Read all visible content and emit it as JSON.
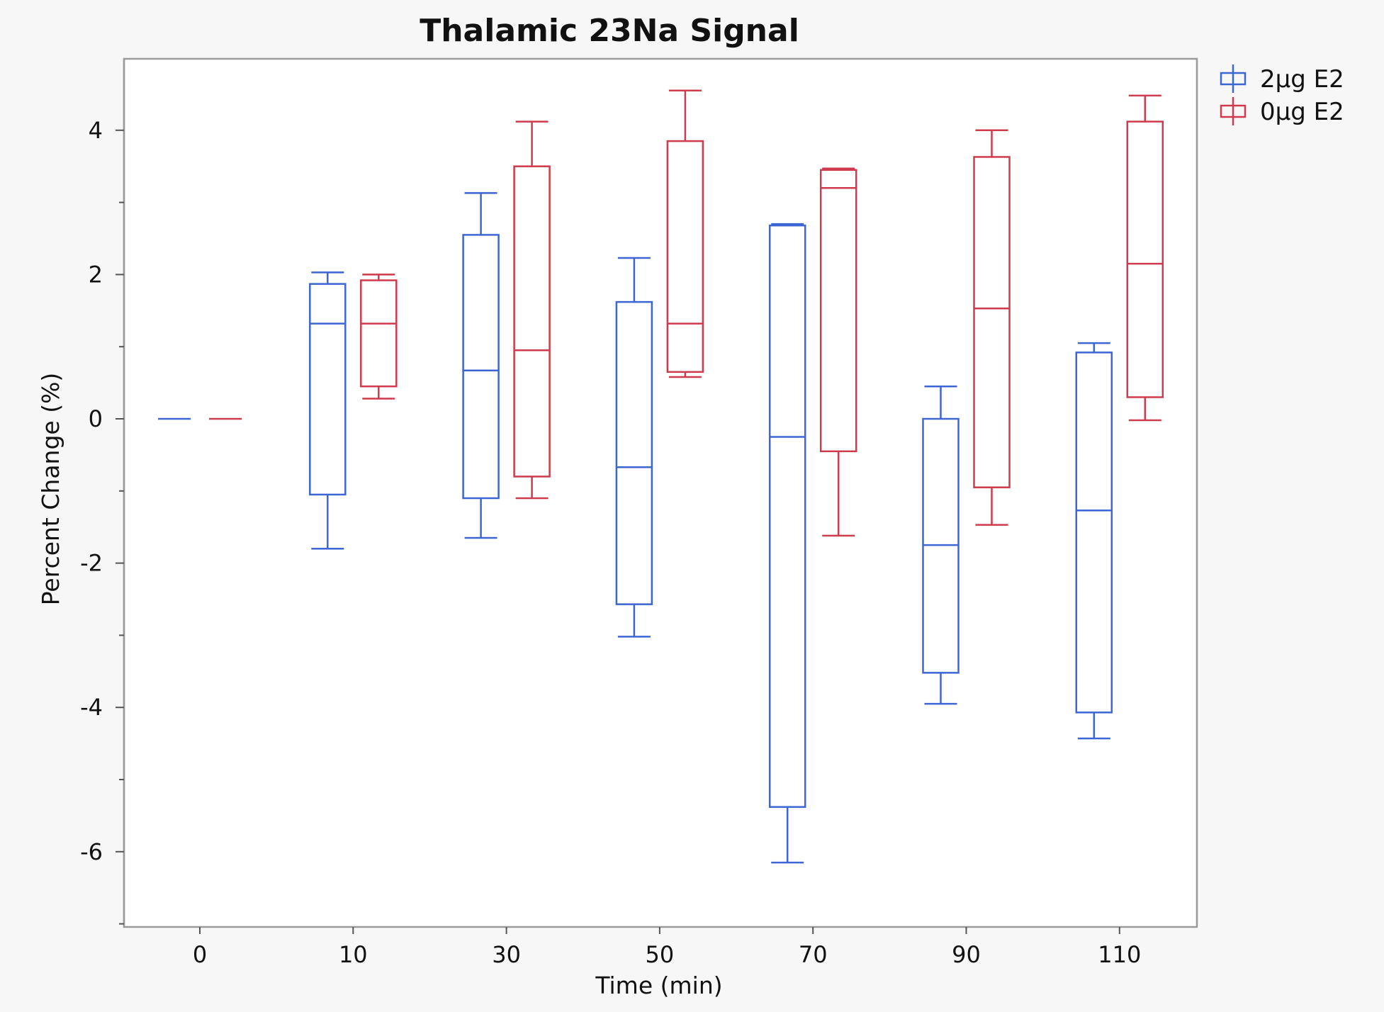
{
  "chart_data": {
    "type": "box",
    "title": "Thalamic 23Na Signal",
    "xlabel": "Time (min)",
    "ylabel": "Percent Change (%)",
    "categories": [
      "0",
      "10",
      "30",
      "50",
      "70",
      "90",
      "110"
    ],
    "ylim": [
      -7,
      5
    ],
    "yticks": [
      4,
      2,
      0,
      -2,
      -4,
      -6
    ],
    "yticks_labels": [
      "4",
      "2",
      "0",
      "-2",
      "-4",
      "-6"
    ],
    "legend_position": "top-right",
    "series": [
      {
        "name": "2µg E2",
        "color": "#3c66d4",
        "boxes": [
          {
            "min": 0,
            "q1": 0,
            "median": 0,
            "q3": 0,
            "max": 0
          },
          {
            "min": -1.8,
            "q1": -1.05,
            "median": 1.32,
            "q3": 1.87,
            "max": 2.03
          },
          {
            "min": -1.65,
            "q1": -1.1,
            "median": 0.67,
            "q3": 2.55,
            "max": 3.13
          },
          {
            "min": -3.02,
            "q1": -2.57,
            "median": -0.67,
            "q3": 1.62,
            "max": 2.23
          },
          {
            "min": -6.15,
            "q1": -5.38,
            "median": -0.25,
            "q3": 2.68,
            "max": 2.7
          },
          {
            "min": -3.95,
            "q1": -3.52,
            "median": -1.75,
            "q3": 0,
            "max": 0.45
          },
          {
            "min": -4.43,
            "q1": -4.07,
            "median": -1.27,
            "q3": 0.92,
            "max": 1.05
          }
        ]
      },
      {
        "name": "0µg E2",
        "color": "#cf3b4c",
        "boxes": [
          {
            "min": 0,
            "q1": 0,
            "median": 0,
            "q3": 0,
            "max": 0
          },
          {
            "min": 0.28,
            "q1": 0.45,
            "median": 1.32,
            "q3": 1.92,
            "max": 2.0
          },
          {
            "min": -1.1,
            "q1": -0.8,
            "median": 0.95,
            "q3": 3.5,
            "max": 4.12
          },
          {
            "min": 0.58,
            "q1": 0.65,
            "median": 1.32,
            "q3": 3.85,
            "max": 4.55
          },
          {
            "min": -1.62,
            "q1": -0.45,
            "median": 3.2,
            "q3": 3.45,
            "max": 3.47
          },
          {
            "min": -1.47,
            "q1": -0.95,
            "median": 1.53,
            "q3": 3.63,
            "max": 4.0
          },
          {
            "min": -0.02,
            "q1": 0.3,
            "median": 2.15,
            "q3": 4.12,
            "max": 4.48
          }
        ]
      }
    ]
  }
}
